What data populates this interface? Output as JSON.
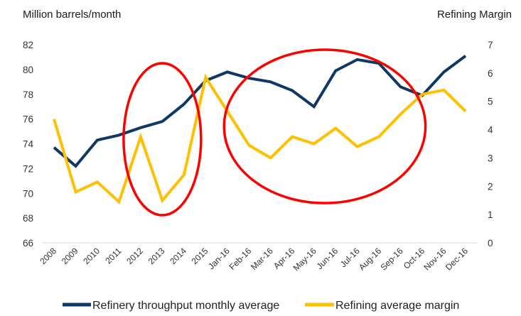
{
  "chart_data": {
    "type": "line",
    "title": "",
    "ylabel_left": "Million barrels/month",
    "ylabel_right": "Refining Margin",
    "xlabel": "",
    "categories": [
      "2008",
      "2009",
      "2010",
      "2011",
      "2012",
      "2013",
      "2014",
      "2015",
      "Jan-16",
      "Feb-16",
      "Mar-16",
      "Apr-16",
      "May-16",
      "Jun-16",
      "Jul-16",
      "Aug-16",
      "Sep-16",
      "Oct-16",
      "Nov-16",
      "Dec-16"
    ],
    "y_left": {
      "min": 66,
      "max": 82,
      "step": 2,
      "ticks": [
        "82",
        "80",
        "78",
        "76",
        "74",
        "72",
        "70",
        "68",
        "66"
      ]
    },
    "y_right": {
      "min": 0,
      "max": 7,
      "step": 1,
      "ticks": [
        "7",
        "6",
        "5",
        "4",
        "3",
        "2",
        "1",
        "0"
      ]
    },
    "grid": false,
    "legend_position": "bottom",
    "series": [
      {
        "name": "Refinery throughput monthly average",
        "axis": "left",
        "color": "#0f3864",
        "values": [
          73.7,
          72.2,
          74.3,
          74.7,
          75.3,
          75.8,
          77.2,
          79.1,
          79.8,
          79.3,
          79.0,
          78.3,
          77.0,
          79.9,
          80.8,
          80.5,
          78.6,
          77.9,
          79.8,
          81.1
        ]
      },
      {
        "name": "Refining average margin",
        "axis": "right",
        "color": "#ffc000",
        "values": [
          4.37,
          1.8,
          2.15,
          1.45,
          3.75,
          1.5,
          2.4,
          5.85,
          4.65,
          3.45,
          3.0,
          3.75,
          3.5,
          4.05,
          3.4,
          3.75,
          4.55,
          5.25,
          5.4,
          4.65
        ]
      }
    ],
    "annotations": [
      {
        "type": "ellipse",
        "color": "#ff0000",
        "around_categories": [
          "2012",
          "2014"
        ],
        "description": "highlight 2012-2014"
      },
      {
        "type": "ellipse",
        "color": "#ff0000",
        "around_categories": [
          "Feb-16",
          "Sep-16"
        ],
        "description": "highlight Feb-16 to Sep-16"
      }
    ]
  }
}
